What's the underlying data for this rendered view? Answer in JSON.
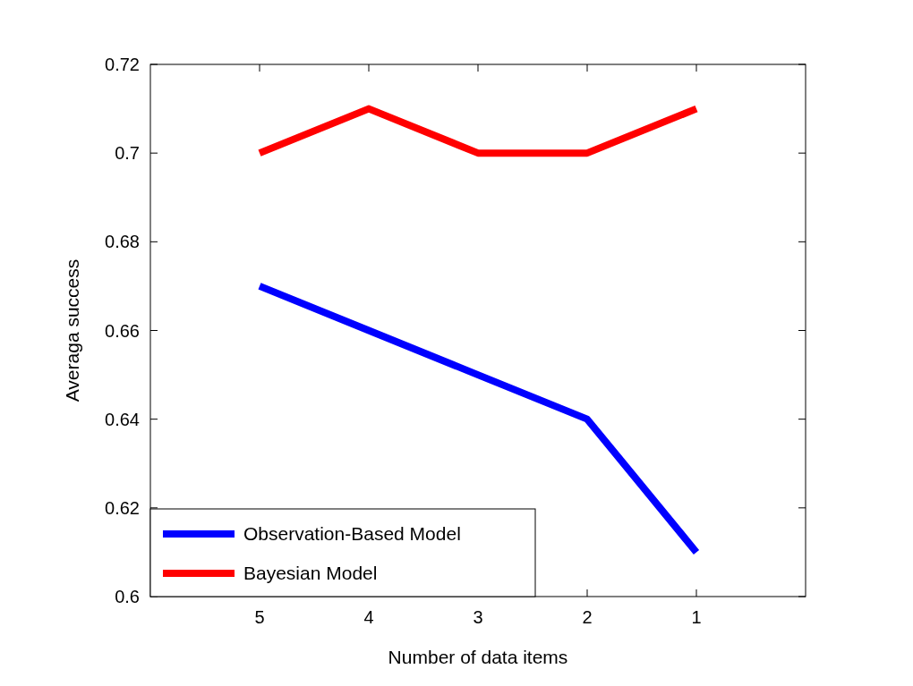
{
  "chart_data": {
    "type": "line",
    "xlabel": "Number of data items",
    "ylabel": "Averaga success",
    "x": [
      5,
      4,
      3,
      2,
      1
    ],
    "xlim": [
      6,
      0
    ],
    "xticks": [
      5,
      4,
      3,
      2,
      1
    ],
    "ylim": [
      0.6,
      0.72
    ],
    "yticks": [
      0.6,
      0.62,
      0.64,
      0.66,
      0.68,
      0.7,
      0.72
    ],
    "series": [
      {
        "name": "Observation-Based Model",
        "color": "#0000ff",
        "values": [
          0.67,
          0.66,
          0.65,
          0.64,
          0.61
        ]
      },
      {
        "name": "Bayesian Model",
        "color": "#ff0000",
        "values": [
          0.7,
          0.71,
          0.7,
          0.7,
          0.71
        ]
      }
    ],
    "legend": "bottom left",
    "grid": false,
    "marker": "none",
    "line_style": "solid"
  }
}
